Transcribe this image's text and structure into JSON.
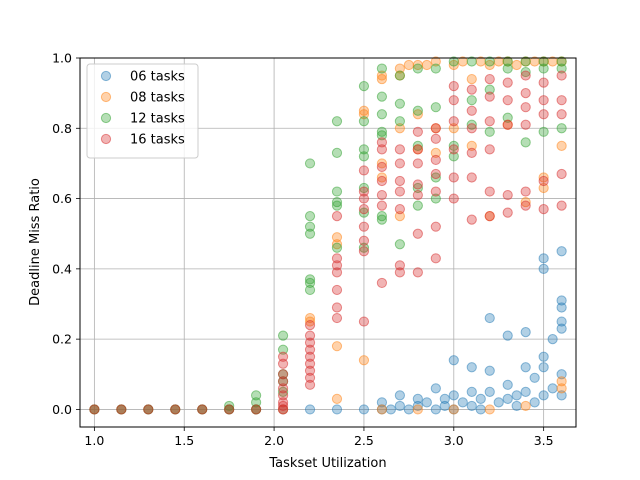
{
  "chart_data": {
    "type": "scatter",
    "title": "",
    "xlabel": "Taskset Utilization",
    "ylabel": "Deadline Miss Ratio",
    "xlim": [
      0.92,
      3.68
    ],
    "ylim": [
      -0.05,
      1.0
    ],
    "xticks": [
      1.0,
      1.5,
      2.0,
      2.5,
      3.0,
      3.5
    ],
    "xtick_labels": [
      "1.0",
      "1.5",
      "2.0",
      "2.5",
      "3.0",
      "3.5"
    ],
    "yticks": [
      0.0,
      0.2,
      0.4,
      0.6,
      0.8,
      1.0
    ],
    "ytick_labels": [
      "0.0",
      "0.2",
      "0.4",
      "0.6",
      "0.8",
      "1.0"
    ],
    "grid": true,
    "legend_position": "top-left",
    "marker_alpha": 0.35,
    "series": [
      {
        "name": "06 tasks",
        "color": "#1f77b4",
        "points": [
          [
            1.0,
            0
          ],
          [
            1.15,
            0
          ],
          [
            1.3,
            0
          ],
          [
            1.45,
            0
          ],
          [
            1.6,
            0
          ],
          [
            1.75,
            0
          ],
          [
            1.9,
            0
          ],
          [
            2.05,
            0
          ],
          [
            2.2,
            0
          ],
          [
            2.35,
            0
          ],
          [
            2.5,
            0
          ],
          [
            2.6,
            0
          ],
          [
            2.6,
            0.02
          ],
          [
            2.65,
            0
          ],
          [
            2.7,
            0.01
          ],
          [
            2.7,
            0.04
          ],
          [
            2.75,
            0
          ],
          [
            2.8,
            0.01
          ],
          [
            2.8,
            0.03
          ],
          [
            2.85,
            0.02
          ],
          [
            2.9,
            0
          ],
          [
            2.9,
            0.06
          ],
          [
            2.95,
            0.01
          ],
          [
            2.95,
            0.03
          ],
          [
            3.0,
            0
          ],
          [
            3.0,
            0.04
          ],
          [
            3.0,
            0.14
          ],
          [
            3.05,
            0.02
          ],
          [
            3.1,
            0.01
          ],
          [
            3.1,
            0.12
          ],
          [
            3.1,
            0.05
          ],
          [
            3.15,
            0
          ],
          [
            3.15,
            0.03
          ],
          [
            3.2,
            0.05
          ],
          [
            3.2,
            0.11
          ],
          [
            3.2,
            0.26
          ],
          [
            3.25,
            0.02
          ],
          [
            3.3,
            0.03
          ],
          [
            3.3,
            0.21
          ],
          [
            3.3,
            0.07
          ],
          [
            3.35,
            0.01
          ],
          [
            3.35,
            0.04
          ],
          [
            3.4,
            0.05
          ],
          [
            3.4,
            0.12
          ],
          [
            3.4,
            0.22
          ],
          [
            3.45,
            0.02
          ],
          [
            3.45,
            0.09
          ],
          [
            3.5,
            0.04
          ],
          [
            3.5,
            0.15
          ],
          [
            3.5,
            0.4
          ],
          [
            3.5,
            0.43
          ],
          [
            3.5,
            0.12
          ],
          [
            3.55,
            0.06
          ],
          [
            3.55,
            0.2
          ],
          [
            3.6,
            0.04
          ],
          [
            3.6,
            0.1
          ],
          [
            3.6,
            0.23
          ],
          [
            3.6,
            0.25
          ],
          [
            3.6,
            0.29
          ],
          [
            3.6,
            0.31
          ],
          [
            3.6,
            0.45
          ]
        ]
      },
      {
        "name": "08 tasks",
        "color": "#ff7f0e",
        "points": [
          [
            1.0,
            0
          ],
          [
            1.15,
            0
          ],
          [
            1.3,
            0
          ],
          [
            1.45,
            0
          ],
          [
            1.6,
            0
          ],
          [
            1.75,
            0
          ],
          [
            1.9,
            0
          ],
          [
            2.05,
            0
          ],
          [
            2.2,
            0.25
          ],
          [
            2.2,
            0.26
          ],
          [
            2.35,
            0.18
          ],
          [
            2.35,
            0.47
          ],
          [
            2.35,
            0.49
          ],
          [
            2.35,
            0.03
          ],
          [
            2.5,
            0.14
          ],
          [
            2.5,
            0.85
          ],
          [
            2.5,
            0.84
          ],
          [
            2.6,
            0.94
          ],
          [
            2.6,
            0.95
          ],
          [
            2.6,
            0.66
          ],
          [
            2.6,
            0.7
          ],
          [
            2.7,
            0.97
          ],
          [
            2.7,
            0.95
          ],
          [
            2.7,
            0.8
          ],
          [
            2.7,
            0.55
          ],
          [
            2.75,
            0.98
          ],
          [
            2.8,
            0.98
          ],
          [
            2.8,
            0.84
          ],
          [
            2.8,
            0.74
          ],
          [
            2.85,
            0.98
          ],
          [
            2.9,
            0.73
          ],
          [
            2.9,
            0.99
          ],
          [
            2.9,
            0.8
          ],
          [
            3.0,
            0.98
          ],
          [
            3.0,
            0.8
          ],
          [
            3.05,
            0.99
          ],
          [
            3.1,
            0.75
          ],
          [
            3.1,
            0.94
          ],
          [
            3.15,
            0.99
          ],
          [
            3.2,
            0.98
          ],
          [
            3.2,
            0.55
          ],
          [
            3.25,
            0.99
          ],
          [
            3.3,
            0.99
          ],
          [
            3.3,
            0.81
          ],
          [
            3.35,
            0.98
          ],
          [
            3.4,
            0.99
          ],
          [
            3.4,
            0.59
          ],
          [
            3.45,
            0.99
          ],
          [
            3.5,
            0.99
          ],
          [
            3.5,
            0.63
          ],
          [
            3.5,
            0.66
          ],
          [
            3.55,
            0.99
          ],
          [
            3.6,
            0.99
          ],
          [
            3.6,
            0.75
          ],
          [
            3.6,
            0.06
          ],
          [
            3.6,
            0.08
          ],
          [
            2.6,
            0
          ],
          [
            2.8,
            0
          ],
          [
            3.0,
            0
          ],
          [
            3.2,
            0
          ],
          [
            3.4,
            0.01
          ]
        ]
      },
      {
        "name": "12 tasks",
        "color": "#2ca02c",
        "points": [
          [
            1.0,
            0
          ],
          [
            1.15,
            0
          ],
          [
            1.3,
            0
          ],
          [
            1.45,
            0
          ],
          [
            1.6,
            0
          ],
          [
            1.75,
            0
          ],
          [
            1.75,
            0.01
          ],
          [
            1.9,
            0
          ],
          [
            1.9,
            0.02
          ],
          [
            1.9,
            0.04
          ],
          [
            2.05,
            0.21
          ],
          [
            2.05,
            0.17
          ],
          [
            2.05,
            0.1
          ],
          [
            2.05,
            0.08
          ],
          [
            2.05,
            0.05
          ],
          [
            2.2,
            0.7
          ],
          [
            2.2,
            0.55
          ],
          [
            2.2,
            0.52
          ],
          [
            2.2,
            0.5
          ],
          [
            2.2,
            0.37
          ],
          [
            2.2,
            0.36
          ],
          [
            2.2,
            0.34
          ],
          [
            2.35,
            0.82
          ],
          [
            2.35,
            0.73
          ],
          [
            2.35,
            0.62
          ],
          [
            2.35,
            0.59
          ],
          [
            2.35,
            0.58
          ],
          [
            2.35,
            0.46
          ],
          [
            2.5,
            0.92
          ],
          [
            2.5,
            0.82
          ],
          [
            2.5,
            0.74
          ],
          [
            2.5,
            0.72
          ],
          [
            2.5,
            0.63
          ],
          [
            2.5,
            0.56
          ],
          [
            2.5,
            0.46
          ],
          [
            2.6,
            0.97
          ],
          [
            2.6,
            0.89
          ],
          [
            2.6,
            0.84
          ],
          [
            2.6,
            0.79
          ],
          [
            2.6,
            0.78
          ],
          [
            2.6,
            0.55
          ],
          [
            2.6,
            0.54
          ],
          [
            2.7,
            0.95
          ],
          [
            2.7,
            0.87
          ],
          [
            2.7,
            0.82
          ],
          [
            2.7,
            0.47
          ],
          [
            2.8,
            0.97
          ],
          [
            2.8,
            0.85
          ],
          [
            2.8,
            0.75
          ],
          [
            2.8,
            0.63
          ],
          [
            2.8,
            0.58
          ],
          [
            2.9,
            0.97
          ],
          [
            2.9,
            0.86
          ],
          [
            2.9,
            0.66
          ],
          [
            2.9,
            0.6
          ],
          [
            3.0,
            0.99
          ],
          [
            3.0,
            0.75
          ],
          [
            3.0,
            0.72
          ],
          [
            3.1,
            0.99
          ],
          [
            3.1,
            0.88
          ],
          [
            3.1,
            0.81
          ],
          [
            3.2,
            0.99
          ],
          [
            3.2,
            0.91
          ],
          [
            3.2,
            0.79
          ],
          [
            3.3,
            0.99
          ],
          [
            3.3,
            0.97
          ],
          [
            3.3,
            0.83
          ],
          [
            3.4,
            0.99
          ],
          [
            3.4,
            0.96
          ],
          [
            3.4,
            0.76
          ],
          [
            3.5,
            0.99
          ],
          [
            3.5,
            0.97
          ],
          [
            3.5,
            0.79
          ],
          [
            3.6,
            0.99
          ],
          [
            3.6,
            0.97
          ],
          [
            3.6,
            0.8
          ]
        ]
      },
      {
        "name": "16 tasks",
        "color": "#d62728",
        "points": [
          [
            1.0,
            0
          ],
          [
            1.15,
            0
          ],
          [
            1.3,
            0
          ],
          [
            1.45,
            0
          ],
          [
            1.6,
            0
          ],
          [
            1.75,
            0
          ],
          [
            1.9,
            0
          ],
          [
            2.05,
            0
          ],
          [
            2.05,
            0.01
          ],
          [
            2.05,
            0.02
          ],
          [
            2.05,
            0.04
          ],
          [
            2.05,
            0.06
          ],
          [
            2.05,
            0.08
          ],
          [
            2.05,
            0.1
          ],
          [
            2.05,
            0.13
          ],
          [
            2.05,
            0.15
          ],
          [
            2.2,
            0.07
          ],
          [
            2.2,
            0.09
          ],
          [
            2.2,
            0.11
          ],
          [
            2.2,
            0.13
          ],
          [
            2.2,
            0.15
          ],
          [
            2.2,
            0.17
          ],
          [
            2.2,
            0.19
          ],
          [
            2.2,
            0.21
          ],
          [
            2.2,
            0.24
          ],
          [
            2.35,
            0.26
          ],
          [
            2.35,
            0.29
          ],
          [
            2.35,
            0.34
          ],
          [
            2.35,
            0.39
          ],
          [
            2.35,
            0.41
          ],
          [
            2.35,
            0.43
          ],
          [
            2.35,
            0.55
          ],
          [
            2.5,
            0.25
          ],
          [
            2.5,
            0.45
          ],
          [
            2.5,
            0.48
          ],
          [
            2.5,
            0.52
          ],
          [
            2.5,
            0.57
          ],
          [
            2.5,
            0.6
          ],
          [
            2.5,
            0.62
          ],
          [
            2.5,
            0.68
          ],
          [
            2.6,
            0.36
          ],
          [
            2.6,
            0.58
          ],
          [
            2.6,
            0.61
          ],
          [
            2.6,
            0.65
          ],
          [
            2.6,
            0.69
          ],
          [
            2.6,
            0.74
          ],
          [
            2.6,
            0.76
          ],
          [
            2.7,
            0.39
          ],
          [
            2.7,
            0.41
          ],
          [
            2.7,
            0.57
          ],
          [
            2.7,
            0.62
          ],
          [
            2.7,
            0.65
          ],
          [
            2.7,
            0.7
          ],
          [
            2.7,
            0.74
          ],
          [
            2.8,
            0.39
          ],
          [
            2.8,
            0.5
          ],
          [
            2.8,
            0.61
          ],
          [
            2.8,
            0.64
          ],
          [
            2.8,
            0.7
          ],
          [
            2.8,
            0.74
          ],
          [
            2.8,
            0.79
          ],
          [
            2.9,
            0.43
          ],
          [
            2.9,
            0.52
          ],
          [
            2.9,
            0.62
          ],
          [
            2.9,
            0.67
          ],
          [
            2.9,
            0.71
          ],
          [
            2.9,
            0.77
          ],
          [
            2.9,
            0.8
          ],
          [
            3.0,
            0.6
          ],
          [
            3.0,
            0.66
          ],
          [
            3.0,
            0.74
          ],
          [
            3.0,
            0.82
          ],
          [
            3.0,
            0.88
          ],
          [
            3.0,
            0.92
          ],
          [
            3.1,
            0.54
          ],
          [
            3.1,
            0.66
          ],
          [
            3.1,
            0.73
          ],
          [
            3.1,
            0.8
          ],
          [
            3.1,
            0.85
          ],
          [
            3.1,
            0.91
          ],
          [
            3.2,
            0.55
          ],
          [
            3.2,
            0.62
          ],
          [
            3.2,
            0.74
          ],
          [
            3.2,
            0.82
          ],
          [
            3.2,
            0.89
          ],
          [
            3.2,
            0.94
          ],
          [
            3.3,
            0.56
          ],
          [
            3.3,
            0.61
          ],
          [
            3.3,
            0.81
          ],
          [
            3.3,
            0.88
          ],
          [
            3.3,
            0.93
          ],
          [
            3.4,
            0.58
          ],
          [
            3.4,
            0.62
          ],
          [
            3.4,
            0.81
          ],
          [
            3.4,
            0.86
          ],
          [
            3.4,
            0.9
          ],
          [
            3.4,
            0.95
          ],
          [
            3.5,
            0.57
          ],
          [
            3.5,
            0.65
          ],
          [
            3.5,
            0.84
          ],
          [
            3.5,
            0.88
          ],
          [
            3.5,
            0.93
          ],
          [
            3.6,
            0.58
          ],
          [
            3.6,
            0.67
          ],
          [
            3.6,
            0.84
          ],
          [
            3.6,
            0.88
          ],
          [
            3.6,
            0.95
          ]
        ]
      }
    ]
  }
}
